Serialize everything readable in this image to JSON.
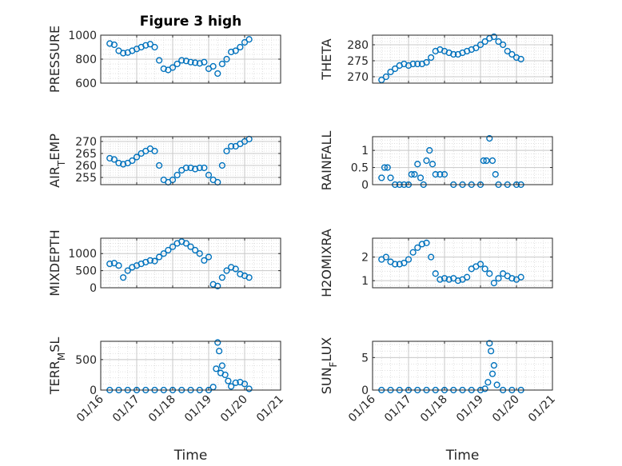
{
  "figure": {
    "title": "Figure 3 high",
    "marker_color": "#0072BD"
  },
  "chart_data": [
    {
      "type": "scatter",
      "title": "Figure 3 high",
      "ylabel": "PRESSURE",
      "xlabel": "",
      "ylim": [
        600,
        1000
      ],
      "yticks": [
        600,
        800,
        1000
      ],
      "xlim": [
        "2020-01-16",
        "2020-01-21"
      ],
      "x_tick_labels": [],
      "grid": true,
      "series": [
        {
          "x": [
            "2020-01-16T06:00",
            "2020-01-16T09:00",
            "2020-01-16T12:00",
            "2020-01-16T15:00",
            "2020-01-16T18:00",
            "2020-01-16T21:00",
            "2020-01-17T00:00",
            "2020-01-17T03:00",
            "2020-01-17T06:00",
            "2020-01-17T09:00",
            "2020-01-17T12:00",
            "2020-01-17T15:00",
            "2020-01-17T18:00",
            "2020-01-17T21:00",
            "2020-01-18T00:00",
            "2020-01-18T03:00",
            "2020-01-18T06:00",
            "2020-01-18T09:00",
            "2020-01-18T12:00",
            "2020-01-18T15:00",
            "2020-01-18T18:00",
            "2020-01-18T21:00",
            "2020-01-19T00:00",
            "2020-01-19T03:00",
            "2020-01-19T06:00",
            "2020-01-19T09:00",
            "2020-01-19T12:00",
            "2020-01-19T15:00",
            "2020-01-19T18:00",
            "2020-01-19T21:00",
            "2020-01-20T00:00",
            "2020-01-20T03:00"
          ],
          "y": [
            930,
            920,
            870,
            850,
            855,
            870,
            885,
            900,
            915,
            925,
            900,
            790,
            720,
            710,
            730,
            760,
            790,
            785,
            775,
            770,
            765,
            775,
            720,
            740,
            680,
            760,
            800,
            860,
            870,
            900,
            940,
            965
          ]
        }
      ]
    },
    {
      "type": "scatter",
      "ylabel": "THETA",
      "xlabel": "",
      "ylim": [
        268,
        283
      ],
      "yticks": [
        270,
        275,
        280
      ],
      "xlim": [
        "2020-01-16",
        "2020-01-21"
      ],
      "x_tick_labels": [],
      "grid": true,
      "series": [
        {
          "x": [
            "2020-01-16T06:00",
            "2020-01-16T09:00",
            "2020-01-16T12:00",
            "2020-01-16T15:00",
            "2020-01-16T18:00",
            "2020-01-16T21:00",
            "2020-01-17T00:00",
            "2020-01-17T03:00",
            "2020-01-17T06:00",
            "2020-01-17T09:00",
            "2020-01-17T12:00",
            "2020-01-17T15:00",
            "2020-01-17T18:00",
            "2020-01-17T21:00",
            "2020-01-18T00:00",
            "2020-01-18T03:00",
            "2020-01-18T06:00",
            "2020-01-18T09:00",
            "2020-01-18T12:00",
            "2020-01-18T15:00",
            "2020-01-18T18:00",
            "2020-01-18T21:00",
            "2020-01-19T00:00",
            "2020-01-19T03:00",
            "2020-01-19T06:00",
            "2020-01-19T09:00",
            "2020-01-19T12:00",
            "2020-01-19T15:00",
            "2020-01-19T18:00",
            "2020-01-19T21:00",
            "2020-01-20T00:00",
            "2020-01-20T03:00"
          ],
          "y": [
            269,
            270,
            271.5,
            272.5,
            273.5,
            274,
            273.5,
            274,
            274,
            274,
            274.5,
            276,
            278,
            278.5,
            278,
            277.5,
            277,
            277,
            277.5,
            278,
            278.5,
            279,
            280,
            281,
            282,
            282.5,
            281,
            280,
            278,
            277,
            276,
            275.5
          ]
        }
      ]
    },
    {
      "type": "scatter",
      "ylabel": "AIR_TEMP",
      "xlabel": "",
      "ylim": [
        252,
        272
      ],
      "yticks": [
        255,
        260,
        265,
        270
      ],
      "xlim": [
        "2020-01-16",
        "2020-01-21"
      ],
      "x_tick_labels": [],
      "grid": true,
      "series": [
        {
          "x": [
            "2020-01-16T06:00",
            "2020-01-16T09:00",
            "2020-01-16T12:00",
            "2020-01-16T15:00",
            "2020-01-16T18:00",
            "2020-01-16T21:00",
            "2020-01-17T00:00",
            "2020-01-17T03:00",
            "2020-01-17T06:00",
            "2020-01-17T09:00",
            "2020-01-17T12:00",
            "2020-01-17T15:00",
            "2020-01-17T18:00",
            "2020-01-17T21:00",
            "2020-01-18T00:00",
            "2020-01-18T03:00",
            "2020-01-18T06:00",
            "2020-01-18T09:00",
            "2020-01-18T12:00",
            "2020-01-18T15:00",
            "2020-01-18T18:00",
            "2020-01-18T21:00",
            "2020-01-19T00:00",
            "2020-01-19T03:00",
            "2020-01-19T06:00",
            "2020-01-19T09:00",
            "2020-01-19T12:00",
            "2020-01-19T15:00",
            "2020-01-19T18:00",
            "2020-01-19T21:00",
            "2020-01-20T00:00",
            "2020-01-20T03:00"
          ],
          "y": [
            263,
            262.5,
            261,
            260.5,
            261,
            262,
            263.5,
            265,
            266,
            267,
            266,
            260,
            254,
            253,
            254,
            256,
            258,
            259,
            259,
            258.5,
            259,
            259,
            256,
            254,
            253,
            260,
            266,
            268,
            268,
            269,
            270,
            271
          ]
        }
      ]
    },
    {
      "type": "scatter",
      "ylabel": "RAINFALL",
      "xlabel": "",
      "ylim": [
        0,
        1.4
      ],
      "yticks": [
        0,
        0.5,
        1
      ],
      "xlim": [
        "2020-01-16",
        "2020-01-21"
      ],
      "x_tick_labels": [],
      "grid": true,
      "series": [
        {
          "x": [
            "2020-01-16T06:00",
            "2020-01-16T08:00",
            "2020-01-16T10:00",
            "2020-01-16T12:00",
            "2020-01-16T15:00",
            "2020-01-16T18:00",
            "2020-01-16T21:00",
            "2020-01-17T00:00",
            "2020-01-17T02:00",
            "2020-01-17T04:00",
            "2020-01-17T06:00",
            "2020-01-17T08:00",
            "2020-01-17T10:00",
            "2020-01-17T12:00",
            "2020-01-17T14:00",
            "2020-01-17T16:00",
            "2020-01-17T18:00",
            "2020-01-17T21:00",
            "2020-01-18T00:00",
            "2020-01-18T06:00",
            "2020-01-18T12:00",
            "2020-01-18T18:00",
            "2020-01-19T00:00",
            "2020-01-19T02:00",
            "2020-01-19T04:00",
            "2020-01-19T06:00",
            "2020-01-19T08:00",
            "2020-01-19T10:00",
            "2020-01-19T12:00",
            "2020-01-19T18:00",
            "2020-01-20T00:00",
            "2020-01-20T03:00"
          ],
          "y": [
            0.2,
            0.5,
            0.5,
            0.2,
            0,
            0,
            0,
            0,
            0.3,
            0.3,
            0.6,
            0.2,
            0,
            0.7,
            1.0,
            0.6,
            0.3,
            0.3,
            0.3,
            0,
            0,
            0,
            0,
            0.7,
            0.7,
            1.35,
            0.7,
            0.3,
            0,
            0,
            0,
            0
          ]
        }
      ]
    },
    {
      "type": "scatter",
      "ylabel": "MIXDEPTH",
      "xlabel": "",
      "ylim": [
        0,
        1450
      ],
      "yticks": [
        0,
        500,
        1000
      ],
      "xlim": [
        "2020-01-16",
        "2020-01-21"
      ],
      "x_tick_labels": [],
      "grid": true,
      "series": [
        {
          "x": [
            "2020-01-16T06:00",
            "2020-01-16T09:00",
            "2020-01-16T12:00",
            "2020-01-16T15:00",
            "2020-01-16T18:00",
            "2020-01-16T21:00",
            "2020-01-17T00:00",
            "2020-01-17T03:00",
            "2020-01-17T06:00",
            "2020-01-17T09:00",
            "2020-01-17T12:00",
            "2020-01-17T15:00",
            "2020-01-17T18:00",
            "2020-01-17T21:00",
            "2020-01-18T00:00",
            "2020-01-18T03:00",
            "2020-01-18T06:00",
            "2020-01-18T09:00",
            "2020-01-18T12:00",
            "2020-01-18T15:00",
            "2020-01-18T18:00",
            "2020-01-18T21:00",
            "2020-01-19T00:00",
            "2020-01-19T03:00",
            "2020-01-19T06:00",
            "2020-01-19T09:00",
            "2020-01-19T12:00",
            "2020-01-19T15:00",
            "2020-01-19T18:00",
            "2020-01-19T21:00",
            "2020-01-20T00:00",
            "2020-01-20T03:00"
          ],
          "y": [
            700,
            720,
            650,
            300,
            500,
            600,
            650,
            700,
            750,
            800,
            780,
            900,
            1000,
            1100,
            1200,
            1300,
            1350,
            1300,
            1200,
            1100,
            1000,
            800,
            900,
            100,
            50,
            300,
            500,
            600,
            550,
            400,
            350,
            300
          ]
        }
      ]
    },
    {
      "type": "scatter",
      "ylabel": "H2OMIXRA",
      "xlabel": "",
      "ylim": [
        0.7,
        2.8
      ],
      "yticks": [
        1,
        2
      ],
      "xlim": [
        "2020-01-16",
        "2020-01-21"
      ],
      "x_tick_labels": [],
      "grid": true,
      "series": [
        {
          "x": [
            "2020-01-16T06:00",
            "2020-01-16T09:00",
            "2020-01-16T12:00",
            "2020-01-16T15:00",
            "2020-01-16T18:00",
            "2020-01-16T21:00",
            "2020-01-17T00:00",
            "2020-01-17T03:00",
            "2020-01-17T06:00",
            "2020-01-17T09:00",
            "2020-01-17T12:00",
            "2020-01-17T15:00",
            "2020-01-17T18:00",
            "2020-01-17T21:00",
            "2020-01-18T00:00",
            "2020-01-18T03:00",
            "2020-01-18T06:00",
            "2020-01-18T09:00",
            "2020-01-18T12:00",
            "2020-01-18T15:00",
            "2020-01-18T18:00",
            "2020-01-18T21:00",
            "2020-01-19T00:00",
            "2020-01-19T03:00",
            "2020-01-19T06:00",
            "2020-01-19T09:00",
            "2020-01-19T12:00",
            "2020-01-19T15:00",
            "2020-01-19T18:00",
            "2020-01-19T21:00",
            "2020-01-20T00:00",
            "2020-01-20T03:00"
          ],
          "y": [
            1.9,
            2.0,
            1.8,
            1.7,
            1.7,
            1.75,
            1.9,
            2.2,
            2.4,
            2.55,
            2.6,
            2.0,
            1.3,
            1.05,
            1.1,
            1.05,
            1.1,
            1.0,
            1.05,
            1.15,
            1.5,
            1.6,
            1.7,
            1.5,
            1.3,
            0.9,
            1.1,
            1.3,
            1.2,
            1.1,
            1.05,
            1.15
          ]
        }
      ]
    },
    {
      "type": "scatter",
      "ylabel": "TERR_MSL",
      "xlabel": "Time",
      "ylim": [
        0,
        800
      ],
      "yticks": [
        0,
        500
      ],
      "xlim": [
        "2020-01-16",
        "2020-01-21"
      ],
      "x_tick_labels": [
        "01/16",
        "01/17",
        "01/18",
        "01/19",
        "01/20",
        "01/21"
      ],
      "grid": true,
      "series": [
        {
          "x": [
            "2020-01-16T06:00",
            "2020-01-16T12:00",
            "2020-01-16T18:00",
            "2020-01-17T00:00",
            "2020-01-17T06:00",
            "2020-01-17T12:00",
            "2020-01-17T18:00",
            "2020-01-18T00:00",
            "2020-01-18T06:00",
            "2020-01-18T12:00",
            "2020-01-18T18:00",
            "2020-01-19T00:00",
            "2020-01-19T03:00",
            "2020-01-19T05:00",
            "2020-01-19T06:00",
            "2020-01-19T07:00",
            "2020-01-19T08:00",
            "2020-01-19T09:00",
            "2020-01-19T11:00",
            "2020-01-19T13:00",
            "2020-01-19T15:00",
            "2020-01-19T18:00",
            "2020-01-19T21:00",
            "2020-01-20T00:00",
            "2020-01-20T03:00"
          ],
          "y": [
            0,
            0,
            0,
            0,
            0,
            0,
            0,
            0,
            0,
            0,
            0,
            0,
            50,
            350,
            780,
            640,
            280,
            400,
            250,
            150,
            60,
            120,
            130,
            100,
            20
          ]
        }
      ]
    },
    {
      "type": "scatter",
      "ylabel": "SUN_FLUX",
      "xlabel": "Time",
      "ylim": [
        0,
        7.5
      ],
      "yticks": [
        0,
        5
      ],
      "xlim": [
        "2020-01-16",
        "2020-01-21"
      ],
      "x_tick_labels": [
        "01/16",
        "01/17",
        "01/18",
        "01/19",
        "01/20",
        "01/21"
      ],
      "grid": true,
      "series": [
        {
          "x": [
            "2020-01-16T06:00",
            "2020-01-16T12:00",
            "2020-01-16T18:00",
            "2020-01-17T00:00",
            "2020-01-17T06:00",
            "2020-01-17T12:00",
            "2020-01-17T18:00",
            "2020-01-18T00:00",
            "2020-01-18T06:00",
            "2020-01-18T12:00",
            "2020-01-18T18:00",
            "2020-01-19T00:00",
            "2020-01-19T03:00",
            "2020-01-19T05:00",
            "2020-01-19T06:00",
            "2020-01-19T07:00",
            "2020-01-19T08:00",
            "2020-01-19T09:00",
            "2020-01-19T11:00",
            "2020-01-19T15:00",
            "2020-01-19T21:00",
            "2020-01-20T03:00"
          ],
          "y": [
            0,
            0,
            0,
            0,
            0,
            0,
            0,
            0,
            0,
            0,
            0,
            0,
            0.2,
            1.2,
            7.2,
            6.0,
            2.5,
            3.8,
            0.8,
            0,
            0,
            0
          ]
        }
      ]
    }
  ]
}
